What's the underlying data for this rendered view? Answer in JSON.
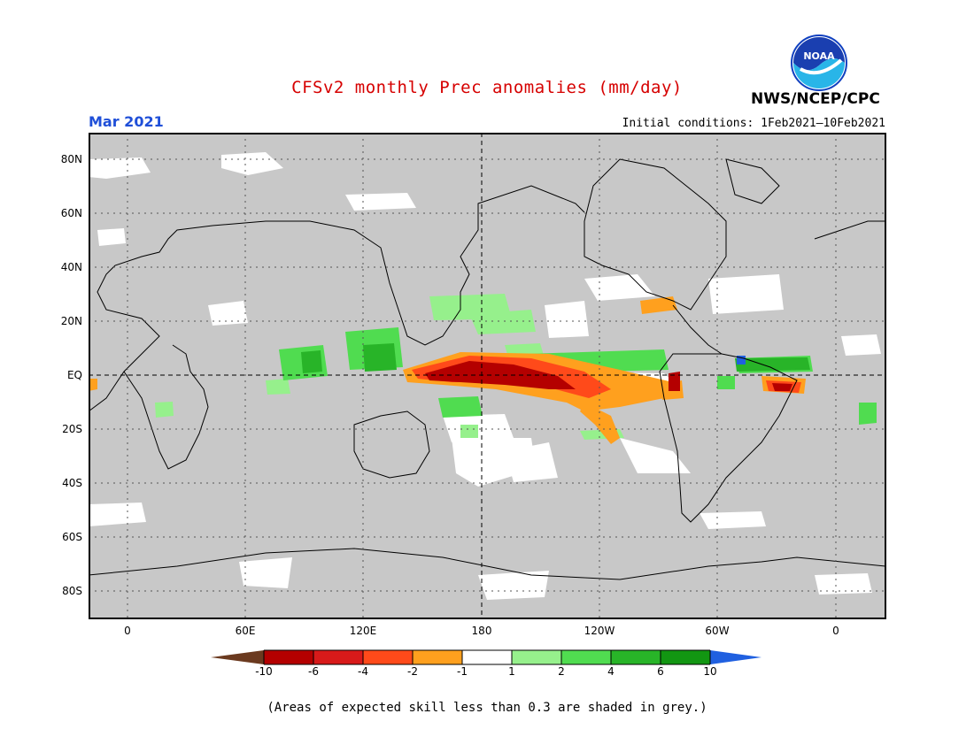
{
  "title": "CFSv2 monthly Prec anomalies (mm/day)",
  "valid_month": "Mar 2021",
  "initial_conditions": "Initial conditions: 1Feb2021–10Feb2021",
  "agency": "NWS/NCEP/CPC",
  "logo_text": "NOAA",
  "footnote": "(Areas of expected skill less than 0.3 are shaded in grey.)",
  "map": {
    "lat_labels": [
      "80N",
      "60N",
      "40N",
      "20N",
      "EQ",
      "20S",
      "40S",
      "60S",
      "80S"
    ],
    "lon_labels": [
      "0",
      "60E",
      "120E",
      "180",
      "120W",
      "60W",
      "0"
    ],
    "skill_mask_color": "#c8c8c8"
  },
  "colorbar": {
    "labels": [
      "-10",
      "-6",
      "-4",
      "-2",
      "-1",
      "1",
      "2",
      "4",
      "6",
      "10"
    ],
    "colors": [
      "#6b3a1f",
      "#b40000",
      "#d81a1a",
      "#ff4a1a",
      "#ffa01e",
      "#ffffff",
      "#96f08c",
      "#50dc50",
      "#28b428",
      "#129612",
      "#2060e0"
    ]
  }
}
